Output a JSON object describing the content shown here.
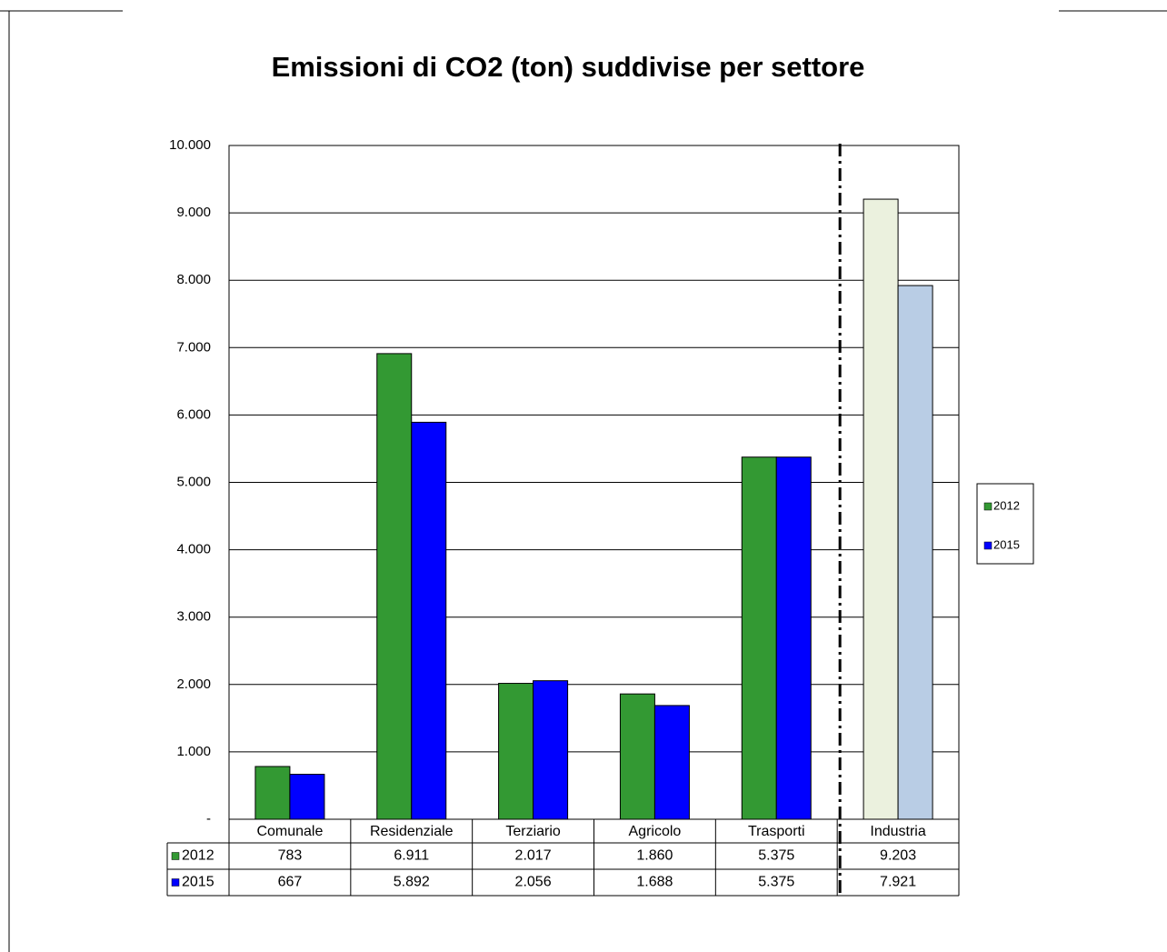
{
  "chart_data": {
    "type": "bar",
    "title": "Emissioni di CO2 (ton) suddivise per settore",
    "categories": [
      "Comunale",
      "Residenziale",
      "Terziario",
      "Agricolo",
      "Trasporti",
      "Industria"
    ],
    "series": [
      {
        "name": "2012",
        "color": "#339933",
        "colors": [
          "#339933",
          "#339933",
          "#339933",
          "#339933",
          "#339933",
          "#ebf1de"
        ],
        "values": [
          783,
          6911,
          2017,
          1860,
          5375,
          9203
        ],
        "value_labels": [
          "783",
          "6.911",
          "2.017",
          "1.860",
          "5.375",
          "9.203"
        ]
      },
      {
        "name": "2015",
        "color": "#0000ff",
        "colors": [
          "#0000ff",
          "#0000ff",
          "#0000ff",
          "#0000ff",
          "#0000ff",
          "#b9cde5"
        ],
        "values": [
          667,
          5892,
          2056,
          1688,
          5375,
          7921
        ],
        "value_labels": [
          "667",
          "5.892",
          "2.056",
          "1.688",
          "5.375",
          "7.921"
        ]
      }
    ],
    "ylim": [
      0,
      10000
    ],
    "yticks": [
      {
        "value": 0,
        "label": "-"
      },
      {
        "value": 1000,
        "label": "1.000"
      },
      {
        "value": 2000,
        "label": "2.000"
      },
      {
        "value": 3000,
        "label": "3.000"
      },
      {
        "value": 4000,
        "label": "4.000"
      },
      {
        "value": 5000,
        "label": "5.000"
      },
      {
        "value": 6000,
        "label": "6.000"
      },
      {
        "value": 7000,
        "label": "7.000"
      },
      {
        "value": 8000,
        "label": "8.000"
      },
      {
        "value": 9000,
        "label": "9.000"
      },
      {
        "value": 10000,
        "label": "10.000"
      }
    ],
    "grid": true,
    "legend": "right"
  }
}
